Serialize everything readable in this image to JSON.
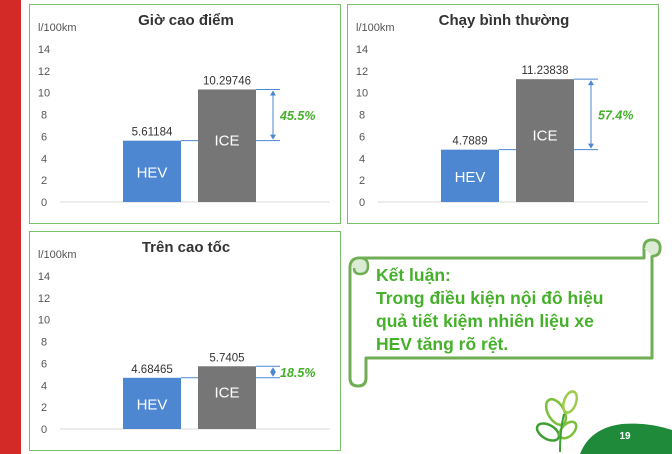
{
  "chart_data": [
    {
      "type": "bar",
      "title": "Giờ cao điểm",
      "ylabel": "l/100km",
      "ylim": [
        0,
        14
      ],
      "yticks": [
        0,
        2,
        4,
        6,
        8,
        10,
        12,
        14
      ],
      "categories": [
        "HEV",
        "ICE"
      ],
      "values": [
        5.61184,
        10.29746
      ],
      "value_labels": [
        "5.61184",
        "10.29746"
      ],
      "difference_label": "45.5%",
      "colors": [
        "#4d86d1",
        "#767676"
      ],
      "grid": false
    },
    {
      "type": "bar",
      "title": "Chạy bình thường",
      "ylabel": "l/100km",
      "ylim": [
        0,
        14
      ],
      "yticks": [
        0,
        2,
        4,
        6,
        8,
        10,
        12,
        14
      ],
      "categories": [
        "HEV",
        "ICE"
      ],
      "values": [
        4.7889,
        11.23838
      ],
      "value_labels": [
        "4.7889",
        "11.23838"
      ],
      "difference_label": "57.4%",
      "colors": [
        "#4d86d1",
        "#767676"
      ],
      "grid": false
    },
    {
      "type": "bar",
      "title": "Trên cao tốc",
      "ylabel": "l/100km",
      "ylim": [
        0,
        14
      ],
      "yticks": [
        0,
        2,
        4,
        6,
        8,
        10,
        12,
        14
      ],
      "categories": [
        "HEV",
        "ICE"
      ],
      "values": [
        4.68465,
        5.7405
      ],
      "value_labels": [
        "4.68465",
        "5.7405"
      ],
      "difference_label": "18.5%",
      "colors": [
        "#4d86d1",
        "#767676"
      ],
      "grid": false
    }
  ],
  "conclusion": {
    "lines": [
      "Kết luận:",
      "Trong điều kiện nội đô hiệu",
      "quả tiết kiệm nhiên liệu xe",
      "HEV tăng rõ rệt."
    ]
  },
  "footer": {
    "page_number": "19"
  },
  "colors": {
    "accent_red": "#d32a27",
    "accent_green": "#45b02a",
    "border_green": "#7cbf6a",
    "arrow_blue": "#4d86d1"
  }
}
